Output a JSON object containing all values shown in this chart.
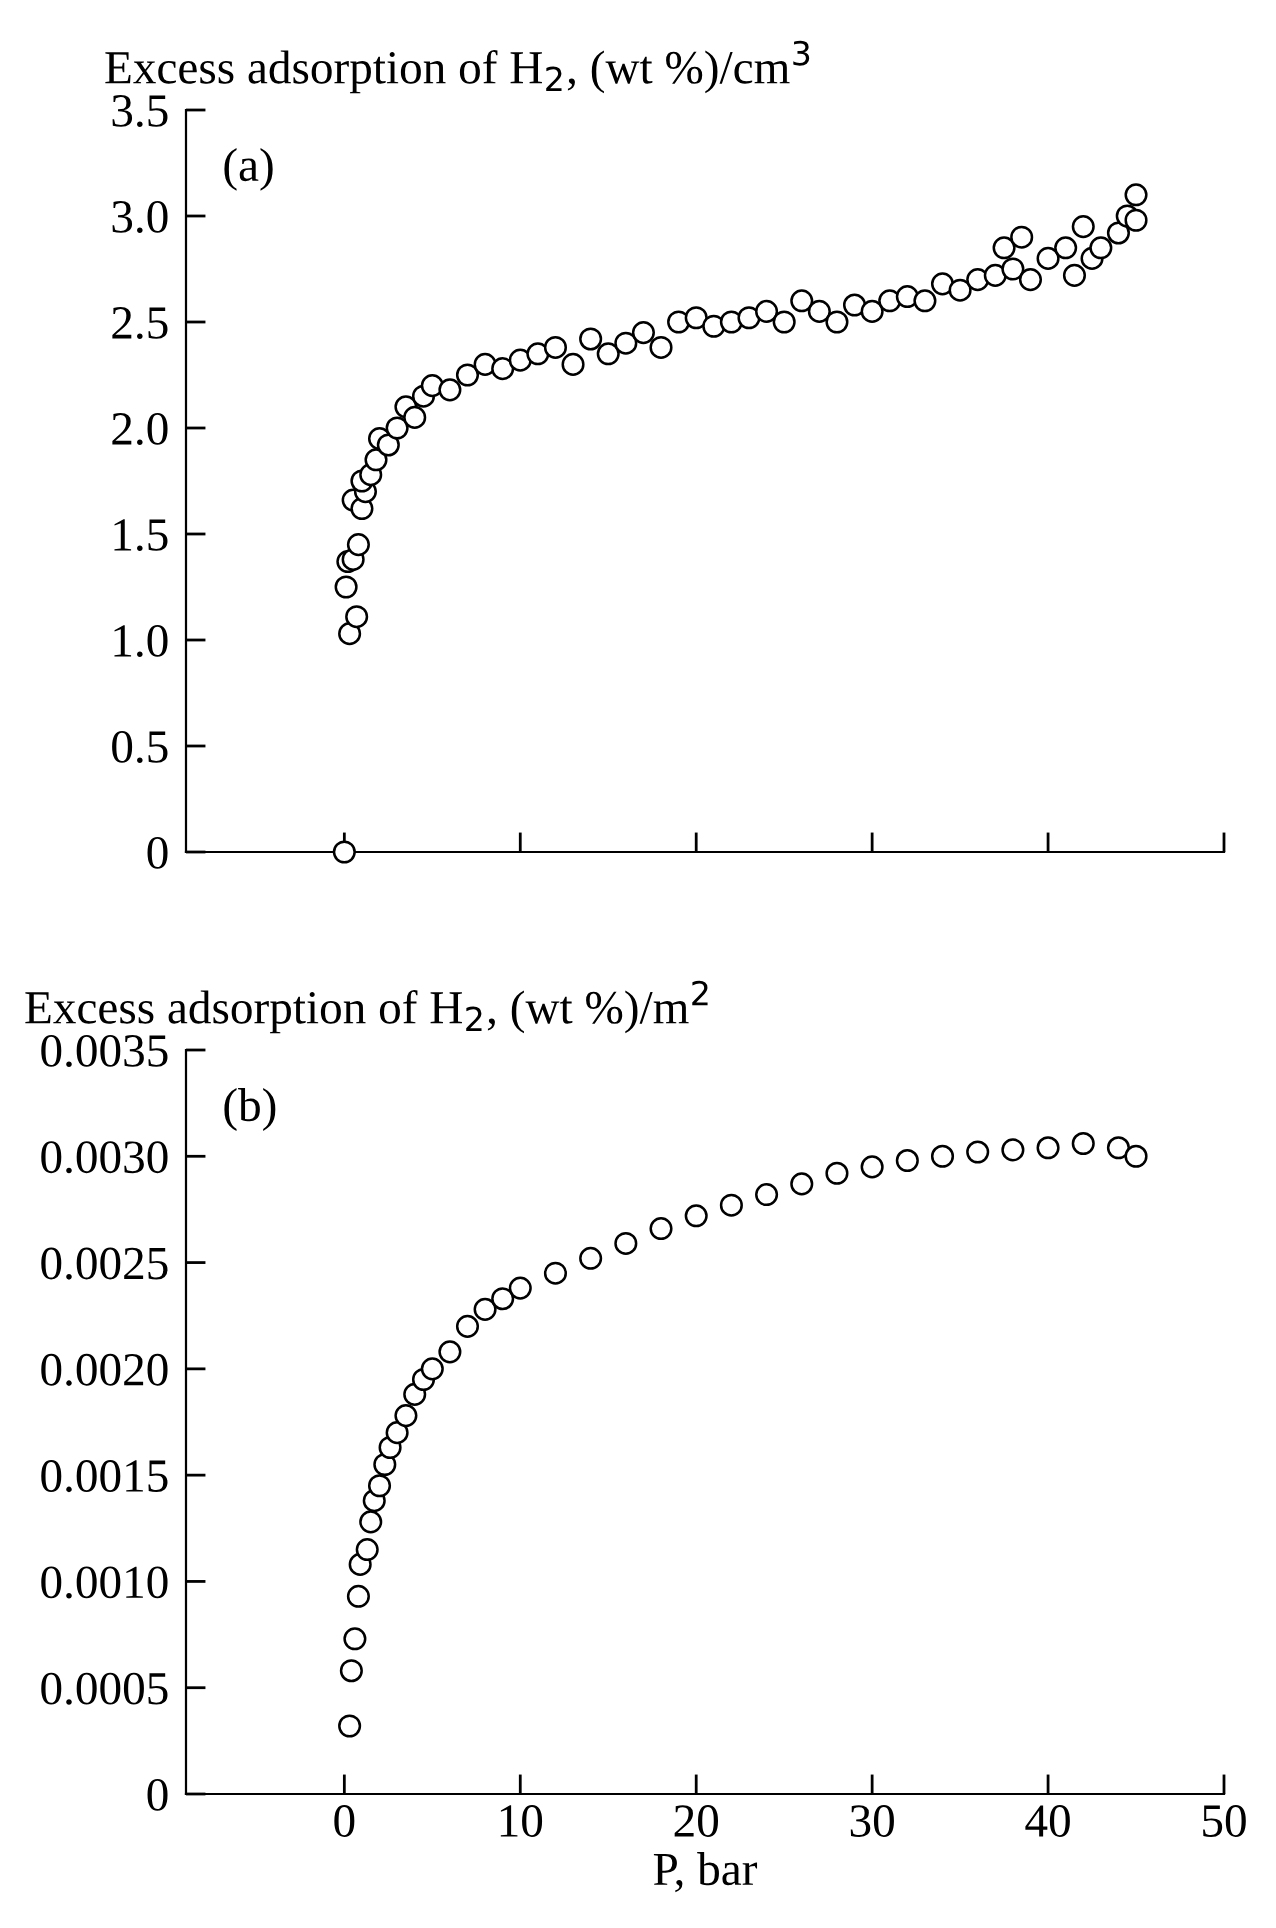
{
  "chart_data": [
    {
      "type": "scatter",
      "ylabel": "Excess adsorption of H$_{2}$, (wt %)/cm$^{3}$",
      "annotations": [
        "(a)"
      ],
      "marker": "circle",
      "tick_labels": "y",
      "grid": false,
      "legend": false,
      "xlim": [
        -9,
        50
      ],
      "xticks": [
        {
          "value": 0,
          "label": null
        },
        {
          "value": 10,
          "label": null
        },
        {
          "value": 20,
          "label": null
        },
        {
          "value": 30,
          "label": null
        },
        {
          "value": 40,
          "label": null
        },
        {
          "value": 50,
          "label": null
        }
      ],
      "ylim": [
        0,
        3.5
      ],
      "yticks": [
        0,
        0.5,
        {
          "value": 1,
          "label": "1.0"
        },
        1.5,
        {
          "value": 2,
          "label": "2.0"
        },
        2.5,
        {
          "value": 3,
          "label": "3.0"
        },
        3.5
      ],
      "series": [
        {
          "color": "#000000",
          "x": [
            0,
            0.1,
            0.2,
            0.3,
            0.5,
            0.7,
            0.5,
            0.8,
            1.0,
            1.2,
            1.0,
            1.5,
            1.8,
            2,
            2.5,
            3,
            3.5,
            4,
            4.5,
            5,
            6,
            7,
            8,
            9,
            10,
            11,
            12,
            13,
            14,
            15,
            16,
            17,
            18,
            19,
            20,
            21,
            22,
            23,
            24,
            25,
            26,
            27,
            28,
            29,
            30,
            31,
            32,
            33,
            34,
            35,
            36,
            37,
            37.5,
            38,
            38.5,
            39,
            40,
            41,
            41.5,
            42,
            42.5,
            43,
            44,
            44.5,
            45,
            45
          ],
          "values": [
            0,
            1.25,
            1.37,
            1.03,
            1.38,
            1.11,
            1.66,
            1.45,
            1.62,
            1.7,
            1.75,
            1.78,
            1.85,
            1.95,
            1.92,
            2.0,
            2.1,
            2.05,
            2.15,
            2.2,
            2.18,
            2.25,
            2.3,
            2.28,
            2.32,
            2.35,
            2.38,
            2.3,
            2.42,
            2.35,
            2.4,
            2.45,
            2.38,
            2.5,
            2.52,
            2.48,
            2.5,
            2.52,
            2.55,
            2.5,
            2.6,
            2.55,
            2.5,
            2.58,
            2.55,
            2.6,
            2.62,
            2.6,
            2.68,
            2.65,
            2.7,
            2.72,
            2.85,
            2.75,
            2.9,
            2.7,
            2.8,
            2.85,
            2.72,
            2.95,
            2.8,
            2.85,
            2.92,
            3.0,
            3.1,
            2.98
          ]
        }
      ]
    },
    {
      "type": "scatter",
      "ylabel": "Excess adsorption of H$_{2}$, (wt %)/m$^{2}$",
      "xlabel": "P, bar",
      "annotations": [
        "(b)"
      ],
      "marker": "circle",
      "grid": false,
      "legend": false,
      "xlim": [
        -9,
        50
      ],
      "xticks": [
        0,
        10,
        20,
        30,
        40,
        50
      ],
      "ylim": [
        0,
        0.0035
      ],
      "yticks": [
        {
          "value": 0,
          "label": "0"
        },
        {
          "value": 0.0005,
          "label": "0.0005"
        },
        {
          "value": 0.001,
          "label": "0.0010"
        },
        {
          "value": 0.0015,
          "label": "0.0015"
        },
        {
          "value": 0.002,
          "label": "0.0020"
        },
        {
          "value": 0.0025,
          "label": "0.0025"
        },
        {
          "value": 0.003,
          "label": "0.0030"
        },
        {
          "value": 0.0035,
          "label": "0.0035"
        }
      ],
      "series": [
        {
          "color": "#000000",
          "x": [
            0.3,
            0.4,
            0.6,
            0.8,
            0.9,
            1.3,
            1.5,
            1.7,
            2,
            2.3,
            2.6,
            3,
            3.5,
            4,
            4.5,
            5,
            6,
            7,
            8,
            9,
            10,
            12,
            14,
            16,
            18,
            20,
            22,
            24,
            26,
            28,
            30,
            32,
            34,
            36,
            38,
            40,
            42,
            44,
            45
          ],
          "values": [
            0.00032,
            0.00058,
            0.00073,
            0.00093,
            0.00108,
            0.00115,
            0.00128,
            0.00138,
            0.00145,
            0.00155,
            0.00163,
            0.0017,
            0.00178,
            0.00188,
            0.00195,
            0.002,
            0.00208,
            0.0022,
            0.00228,
            0.00233,
            0.00238,
            0.00245,
            0.00252,
            0.00259,
            0.00266,
            0.00272,
            0.00277,
            0.00282,
            0.00287,
            0.00292,
            0.00295,
            0.00298,
            0.003,
            0.00302,
            0.00303,
            0.00304,
            0.00306,
            0.00304,
            0.003
          ]
        }
      ]
    }
  ]
}
